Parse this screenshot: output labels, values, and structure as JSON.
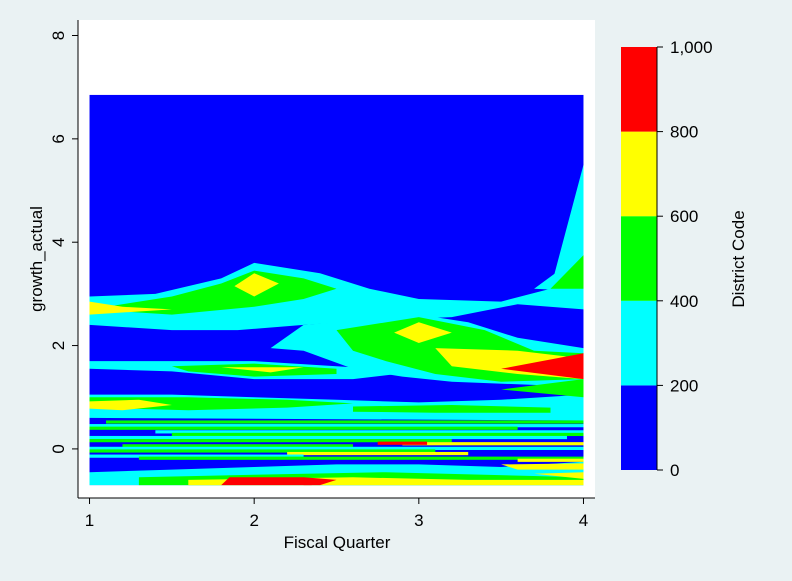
{
  "chart_data": {
    "type": "contour",
    "xlabel": "Fiscal Quarter",
    "ylabel": "growth_actual",
    "colorbar_label": "District Code",
    "x_ticks": [
      1,
      2,
      3,
      4
    ],
    "x_tick_labels": [
      "1",
      "2",
      "3",
      "4"
    ],
    "y_ticks": [
      0,
      2,
      4,
      6,
      8
    ],
    "y_tick_labels": [
      "0",
      "2",
      "4",
      "6",
      "8"
    ],
    "xlim": [
      0.93,
      4.07
    ],
    "ylim": [
      -0.95,
      8.3
    ],
    "data_extent": {
      "x": [
        1,
        4
      ],
      "y": [
        -0.7,
        6.85
      ]
    },
    "levels": [
      {
        "range": [
          0,
          200
        ],
        "color": "#0000ff"
      },
      {
        "range": [
          200,
          400
        ],
        "color": "#00ffff"
      },
      {
        "range": [
          400,
          600
        ],
        "color": "#00ff00"
      },
      {
        "range": [
          600,
          800
        ],
        "color": "#ffff00"
      },
      {
        "range": [
          800,
          1000
        ],
        "color": "#ff0000"
      }
    ],
    "colorbar_ticks": [
      0,
      200,
      400,
      600,
      800,
      1000
    ],
    "colorbar_tick_labels": [
      "0",
      "200",
      "400",
      "600",
      "800",
      "1,000"
    ],
    "regions": [
      {
        "level": 1,
        "points": [
          [
            1,
            2.95
          ],
          [
            1.4,
            3
          ],
          [
            1.8,
            3.3
          ],
          [
            2,
            3.6
          ],
          [
            2.4,
            3.4
          ],
          [
            2.7,
            3.1
          ],
          [
            3,
            2.9
          ],
          [
            3.5,
            2.85
          ],
          [
            3.8,
            3.1
          ],
          [
            4,
            5.5
          ],
          [
            4,
            2.7
          ],
          [
            3.6,
            2.8
          ],
          [
            3.2,
            2.55
          ],
          [
            2.8,
            2.5
          ],
          [
            2.3,
            2.4
          ],
          [
            1.9,
            2.3
          ],
          [
            1.5,
            2.3
          ],
          [
            1,
            2.4
          ]
        ]
      },
      {
        "level": 2,
        "points": [
          [
            1,
            2.7
          ],
          [
            1.5,
            2.95
          ],
          [
            1.8,
            3.2
          ],
          [
            2,
            3.45
          ],
          [
            2.3,
            3.3
          ],
          [
            2.5,
            3.1
          ],
          [
            2.3,
            2.9
          ],
          [
            2,
            2.75
          ],
          [
            1.5,
            2.6
          ]
        ]
      },
      {
        "level": 3,
        "points": [
          [
            1.88,
            3.15
          ],
          [
            2,
            3.4
          ],
          [
            2.15,
            3.2
          ],
          [
            2,
            2.95
          ]
        ]
      },
      {
        "level": 3,
        "points": [
          [
            1,
            2.85
          ],
          [
            1.2,
            2.75
          ],
          [
            1.5,
            2.7
          ],
          [
            1,
            2.6
          ]
        ]
      },
      {
        "level": 1,
        "points": [
          [
            2.3,
            2.4
          ],
          [
            2.7,
            2.5
          ],
          [
            3,
            2.6
          ],
          [
            3.3,
            2.45
          ],
          [
            3.6,
            2.15
          ],
          [
            4,
            1.95
          ],
          [
            4,
            1.2
          ],
          [
            3.6,
            1.25
          ],
          [
            3.2,
            1.3
          ],
          [
            2.9,
            1.4
          ],
          [
            2.6,
            1.55
          ],
          [
            2.3,
            1.9
          ],
          [
            2.1,
            1.95
          ]
        ]
      },
      {
        "level": 2,
        "points": [
          [
            2.5,
            2.3
          ],
          [
            3,
            2.55
          ],
          [
            3.4,
            2.3
          ],
          [
            3.7,
            1.9
          ],
          [
            4,
            1.85
          ],
          [
            4,
            1.35
          ],
          [
            3.5,
            1.3
          ],
          [
            3.1,
            1.45
          ],
          [
            2.8,
            1.7
          ],
          [
            2.6,
            1.9
          ]
        ]
      },
      {
        "level": 3,
        "points": [
          [
            2.85,
            2.25
          ],
          [
            3,
            2.45
          ],
          [
            3.2,
            2.25
          ],
          [
            3,
            2.05
          ]
        ]
      },
      {
        "level": 3,
        "points": [
          [
            3.1,
            1.95
          ],
          [
            3.6,
            1.9
          ],
          [
            4,
            1.75
          ],
          [
            4,
            1.35
          ],
          [
            3.6,
            1.45
          ],
          [
            3.2,
            1.6
          ]
        ]
      },
      {
        "level": 4,
        "points": [
          [
            3.5,
            1.55
          ],
          [
            4,
            1.85
          ],
          [
            4,
            1.35
          ]
        ]
      },
      {
        "level": 1,
        "points": [
          [
            3.7,
            3.1
          ],
          [
            4,
            3.8
          ],
          [
            4,
            3.05
          ]
        ]
      },
      {
        "level": 2,
        "points": [
          [
            3.8,
            3.1
          ],
          [
            4,
            3.75
          ],
          [
            4,
            3.1
          ]
        ]
      },
      {
        "level": 1,
        "points": [
          [
            1,
            1.7
          ],
          [
            1.5,
            1.7
          ],
          [
            2,
            1.7
          ],
          [
            2.5,
            1.6
          ],
          [
            3,
            1.5
          ],
          [
            2.6,
            1.35
          ],
          [
            2,
            1.35
          ],
          [
            1.5,
            1.5
          ],
          [
            1,
            1.55
          ]
        ]
      },
      {
        "level": 2,
        "points": [
          [
            1.5,
            1.6
          ],
          [
            2,
            1.65
          ],
          [
            2.5,
            1.55
          ],
          [
            2.5,
            1.45
          ],
          [
            2,
            1.4
          ],
          [
            1.6,
            1.5
          ]
        ]
      },
      {
        "level": 3,
        "points": [
          [
            1.8,
            1.58
          ],
          [
            2.3,
            1.58
          ],
          [
            2.1,
            1.48
          ]
        ]
      },
      {
        "level": 1,
        "points": [
          [
            1,
            1.05
          ],
          [
            1.5,
            1.05
          ],
          [
            2,
            1
          ],
          [
            2.5,
            0.95
          ],
          [
            3,
            0.9
          ],
          [
            3.5,
            0.95
          ],
          [
            4,
            1.05
          ],
          [
            4,
            0.55
          ],
          [
            1,
            0.6
          ]
        ]
      },
      {
        "level": 2,
        "points": [
          [
            1,
            1
          ],
          [
            1.6,
            1
          ],
          [
            2.2,
            0.95
          ],
          [
            2.6,
            0.88
          ],
          [
            2.2,
            0.8
          ],
          [
            1.6,
            0.75
          ],
          [
            1,
            0.8
          ]
        ]
      },
      {
        "level": 3,
        "points": [
          [
            1,
            0.92
          ],
          [
            1.3,
            0.95
          ],
          [
            1.5,
            0.85
          ],
          [
            1.2,
            0.75
          ],
          [
            1,
            0.78
          ]
        ]
      },
      {
        "level": 2,
        "points": [
          [
            2.6,
            0.82
          ],
          [
            3.2,
            0.85
          ],
          [
            3.8,
            0.8
          ],
          [
            3.8,
            0.7
          ],
          [
            3.1,
            0.7
          ],
          [
            2.6,
            0.72
          ]
        ]
      },
      {
        "level": 2,
        "points": [
          [
            3.5,
            1.15
          ],
          [
            4,
            1.35
          ],
          [
            4,
            1
          ]
        ]
      },
      {
        "level": 1,
        "points": [
          [
            1,
            -0.7
          ],
          [
            4,
            -0.7
          ],
          [
            4,
            -0.25
          ],
          [
            3.5,
            -0.35
          ],
          [
            3,
            -0.3
          ],
          [
            2.5,
            -0.3
          ],
          [
            2,
            -0.35
          ],
          [
            1.5,
            -0.4
          ],
          [
            1,
            -0.45
          ]
        ]
      },
      {
        "level": 2,
        "points": [
          [
            1.3,
            -0.55
          ],
          [
            2,
            -0.5
          ],
          [
            2.8,
            -0.45
          ],
          [
            3.4,
            -0.5
          ],
          [
            4,
            -0.55
          ],
          [
            4,
            -0.7
          ],
          [
            1.3,
            -0.7
          ]
        ]
      },
      {
        "level": 3,
        "points": [
          [
            1.6,
            -0.6
          ],
          [
            2.6,
            -0.55
          ],
          [
            3.3,
            -0.6
          ],
          [
            4,
            -0.6
          ],
          [
            4,
            -0.7
          ],
          [
            1.6,
            -0.7
          ]
        ]
      },
      {
        "level": 4,
        "points": [
          [
            1.85,
            -0.55
          ],
          [
            2.3,
            -0.55
          ],
          [
            2.35,
            -0.7
          ],
          [
            1.8,
            -0.7
          ]
        ]
      },
      {
        "level": 3,
        "points": [
          [
            3.5,
            -0.3
          ],
          [
            4,
            -0.28
          ],
          [
            4,
            -0.4
          ],
          [
            3.6,
            -0.4
          ]
        ]
      },
      {
        "level": 3,
        "points": [
          [
            3.7,
            -0.48
          ],
          [
            4,
            -0.45
          ],
          [
            4,
            -0.58
          ]
        ]
      },
      {
        "level": 4,
        "points": [
          [
            2.3,
            -0.55
          ],
          [
            2.5,
            -0.6
          ],
          [
            2.4,
            -0.7
          ],
          [
            2.3,
            -0.7
          ]
        ]
      }
    ],
    "stripes": [
      {
        "y": 0.52,
        "level": 2,
        "x": [
          1.1,
          4
        ]
      },
      {
        "y": 0.45,
        "level": 1,
        "x": [
          1,
          4
        ]
      },
      {
        "y": 0.4,
        "level": 2,
        "x": [
          1,
          3.6
        ]
      },
      {
        "y": 0.33,
        "level": 1,
        "x": [
          1.4,
          4
        ]
      },
      {
        "y": 0.28,
        "level": 2,
        "x": [
          1.5,
          4
        ]
      },
      {
        "y": 0.22,
        "level": 1,
        "x": [
          1,
          3.9
        ]
      },
      {
        "y": 0.16,
        "level": 2,
        "x": [
          1,
          3.2
        ]
      },
      {
        "y": 0.1,
        "level": 3,
        "x": [
          2.9,
          4
        ]
      },
      {
        "y": 0.06,
        "level": 2,
        "x": [
          1.2,
          2.6
        ]
      },
      {
        "y": 0.01,
        "level": 1,
        "x": [
          1,
          4
        ]
      },
      {
        "y": -0.04,
        "level": 2,
        "x": [
          1,
          3.1
        ]
      },
      {
        "y": -0.09,
        "level": 3,
        "x": [
          2.2,
          3.3
        ]
      },
      {
        "y": 0.11,
        "level": 4,
        "x": [
          2.75,
          3.05
        ]
      },
      {
        "y": -0.14,
        "level": 1,
        "x": [
          1,
          2.3
        ]
      },
      {
        "y": -0.18,
        "level": 2,
        "x": [
          1.3,
          4
        ]
      },
      {
        "y": -0.22,
        "level": 3,
        "x": [
          3.6,
          4
        ]
      }
    ]
  }
}
